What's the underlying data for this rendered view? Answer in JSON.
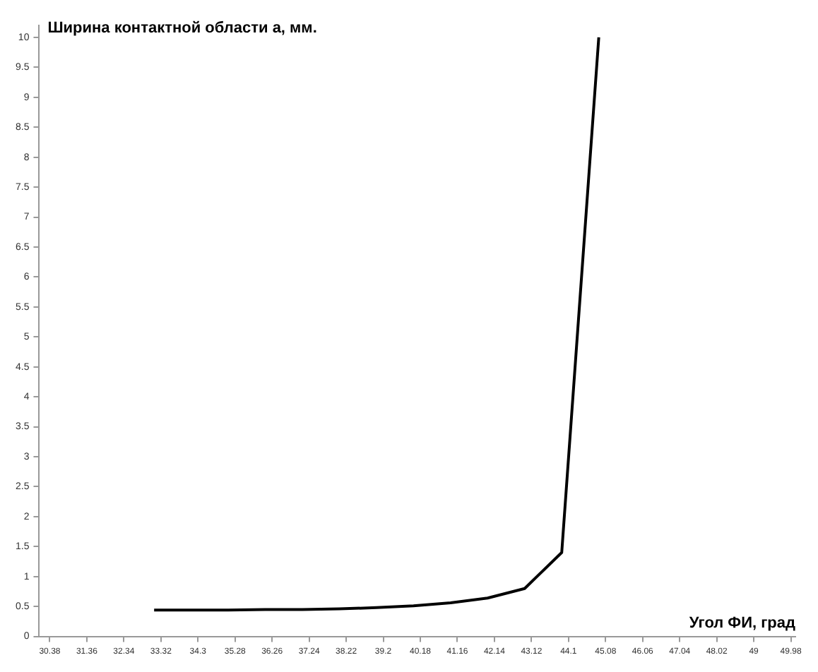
{
  "chart_data": {
    "type": "line",
    "xlabel": "Угол ФИ, град",
    "ylabel": "Ширина контактной области а, мм.",
    "x": [
      33.14,
      34.12,
      35.1,
      36.08,
      37.06,
      38.04,
      39.02,
      40.0,
      40.98,
      41.96,
      42.94,
      43.92,
      44.9
    ],
    "series": [
      {
        "color": "#000000",
        "values": [
          0.44,
          0.44,
          0.44,
          0.45,
          0.45,
          0.46,
          0.48,
          0.51,
          0.56,
          0.64,
          0.8,
          1.4,
          10
        ]
      }
    ],
    "xlim": [
      30.1,
      50.1
    ],
    "xticks": [
      30.38,
      31.36,
      32.34,
      33.32,
      34.3,
      35.28,
      36.26,
      37.24,
      38.22,
      39.2,
      40.18,
      41.16,
      42.14,
      43.12,
      44.1,
      45.08,
      46.06,
      47.04,
      48.02,
      49,
      49.98
    ],
    "ylim": [
      0,
      10.2
    ],
    "yticks": [
      0,
      0.5,
      1,
      1.5,
      2,
      2.5,
      3,
      3.5,
      4,
      4.5,
      5,
      5.5,
      6,
      6.5,
      7,
      7.5,
      8,
      8.5,
      9,
      9.5,
      10
    ],
    "grid": false,
    "legend": false,
    "marker": "none",
    "line_style": "solid"
  }
}
